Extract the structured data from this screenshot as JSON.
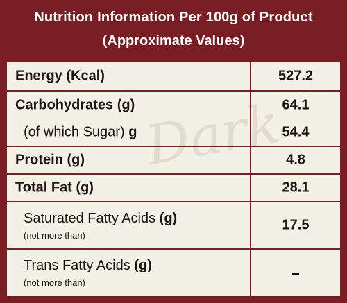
{
  "header": {
    "title": "Nutrition Information Per 100g of Product",
    "subtitle": "(Approximate Values)"
  },
  "watermark": "Dark",
  "rows": [
    {
      "label": "Energy (Kcal)",
      "value": "527.2"
    },
    {
      "label": "Carbohydrates (g)",
      "value": "64.1"
    },
    {
      "label": "(of which Sugar)",
      "unit": "g",
      "value": "54.4"
    },
    {
      "label": "Protein (g)",
      "value": "4.8"
    },
    {
      "label": "Total Fat (g)",
      "value": "28.1"
    },
    {
      "label": "Saturated Fatty Acids",
      "unit": "(g)",
      "note": "(not more than)",
      "value": "17.5"
    },
    {
      "label": "Trans Fatty Acids",
      "unit": "(g)",
      "note": "(not more than)",
      "value": "–"
    }
  ],
  "colors": {
    "border": "#7a1e24",
    "background": "#f3f0e6",
    "header_text": "#ffffff"
  }
}
